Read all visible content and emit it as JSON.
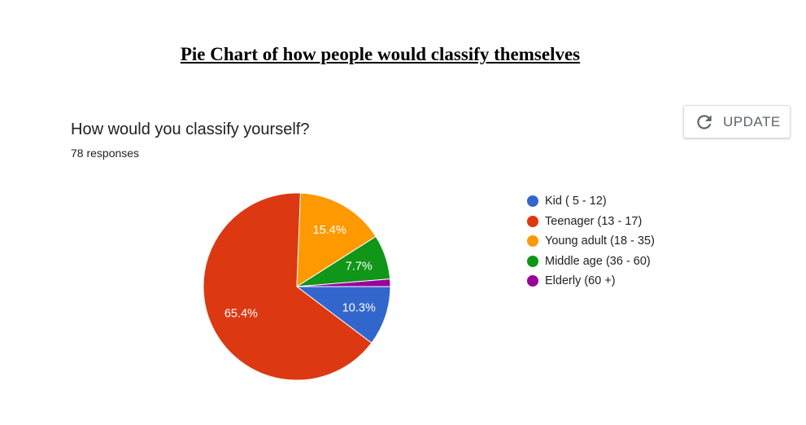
{
  "page_heading": "Pie Chart of how people would classify themselves",
  "form": {
    "question": "How would you classify yourself?",
    "responses": "78 responses",
    "update_button_label": "UPDATE",
    "update_icon": "refresh-icon"
  },
  "chart_data": {
    "type": "pie",
    "title": "How would you classify yourself?",
    "subtitle": "78 responses",
    "legend_position": "right",
    "slices": [
      {
        "label": "Kid ( 5 - 12)",
        "value": 10.3,
        "display": "10.3%",
        "color": "#3366cc"
      },
      {
        "label": "Teenager (13 - 17)",
        "value": 65.4,
        "display": "65.4%",
        "color": "#dc3912"
      },
      {
        "label": "Young adult (18 - 35)",
        "value": 15.4,
        "display": "15.4%",
        "color": "#ff9900"
      },
      {
        "label": "Middle age (36 - 60)",
        "value": 7.7,
        "display": "7.7%",
        "color": "#109618"
      },
      {
        "label": "Elderly (60 +)",
        "value": 1.3,
        "display": "",
        "color": "#990099"
      }
    ]
  }
}
